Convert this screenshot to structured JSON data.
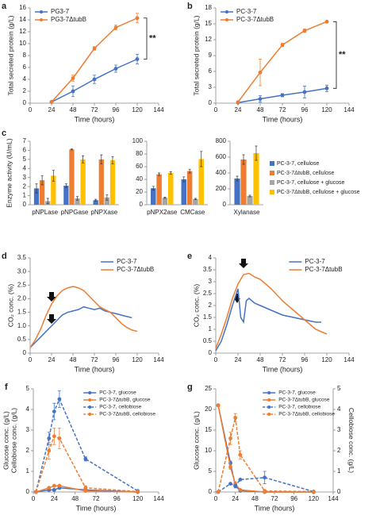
{
  "chart_data": [
    {
      "type": "line",
      "label": "a",
      "x_label": "Time (hours)",
      "y_label": "Total secreted protein (g/L)",
      "xlim": [
        0,
        144
      ],
      "xticks": [
        0,
        24,
        48,
        72,
        96,
        120,
        144
      ],
      "ylim": [
        0,
        16
      ],
      "yticks": [
        0,
        2,
        4,
        6,
        8,
        10,
        12,
        14,
        16
      ],
      "legend": "upper left",
      "markers": true,
      "annotations": [
        "**"
      ],
      "series": [
        {
          "name": "PG3-7",
          "color": "#4472c4",
          "x": [
            24,
            48,
            72,
            96,
            120
          ],
          "values": [
            0.2,
            2.0,
            4.0,
            5.8,
            7.4
          ],
          "errors": [
            0.1,
            0.9,
            0.7,
            0.6,
            0.8
          ]
        },
        {
          "name": "PG3-7ΔtubB",
          "color": "#ed7d31",
          "x": [
            24,
            48,
            72,
            96,
            120
          ],
          "values": [
            0.2,
            4.2,
            9.2,
            12.7,
            14.3
          ],
          "errors": [
            0.1,
            0.5,
            0.3,
            0.4,
            0.8
          ]
        }
      ]
    },
    {
      "type": "line",
      "label": "b",
      "x_label": "Time (hours)",
      "y_label": "Total secreted protein (g/L)",
      "xlim": [
        0,
        144
      ],
      "xticks": [
        0,
        24,
        48,
        72,
        96,
        120,
        144
      ],
      "ylim": [
        0,
        18
      ],
      "yticks": [
        0,
        3,
        6,
        9,
        12,
        15,
        18
      ],
      "legend": "upper left",
      "markers": true,
      "annotations": [
        "**"
      ],
      "series": [
        {
          "name": "PC-3-7",
          "color": "#4472c4",
          "x": [
            24,
            48,
            72,
            96,
            120
          ],
          "values": [
            0.1,
            0.8,
            1.5,
            2.1,
            2.8
          ],
          "errors": [
            0.1,
            0.6,
            0.3,
            1.1,
            0.6
          ]
        },
        {
          "name": "PC-3-7ΔtubB",
          "color": "#ed7d31",
          "x": [
            24,
            48,
            72,
            96,
            120
          ],
          "values": [
            0.2,
            5.8,
            11.0,
            13.7,
            15.4
          ],
          "errors": [
            0.1,
            2.5,
            0.3,
            0.3,
            0.2
          ]
        }
      ]
    },
    {
      "type": "bar",
      "label": "c",
      "y_label": "Enzyme activity (U/mL)",
      "legend": "right",
      "series": [
        {
          "name": "PC-3-7, cellulose",
          "color": "#4472c4"
        },
        {
          "name": "PC-3-7ΔtubB, cellulose",
          "color": "#ed7d31"
        },
        {
          "name": "PC-3-7, cellulose + glucose",
          "color": "#a5a5a5"
        },
        {
          "name": "PC-3-7ΔtubB, cellulose + glucose",
          "color": "#ffc000"
        }
      ],
      "panels": [
        {
          "categories": [
            "pNPLase",
            "pNPGase",
            "pNPXase"
          ],
          "ylim": [
            0,
            7
          ],
          "yticks": [
            0,
            1,
            2,
            3,
            4,
            5,
            6,
            7
          ],
          "series": [
            {
              "values": [
                1.8,
                2.1,
                0.5
              ],
              "errors": [
                0.5,
                0.2,
                0.1
              ]
            },
            {
              "values": [
                2.7,
                6.1,
                5.0
              ],
              "errors": [
                0.5,
                0.05,
                0.5
              ]
            },
            {
              "values": [
                0.4,
                0.7,
                0.8
              ],
              "errors": [
                0.3,
                0.2,
                0.3
              ]
            },
            {
              "values": [
                3.2,
                5.0,
                4.9
              ],
              "errors": [
                0.6,
                0.4,
                0.4
              ]
            }
          ]
        },
        {
          "categories": [
            "pNPX2ase",
            "CMCase"
          ],
          "ylim": [
            0,
            100
          ],
          "yticks": [
            0,
            20,
            40,
            60,
            80,
            100
          ],
          "series": [
            {
              "values": [
                26,
                40
              ],
              "errors": [
                3,
                4
              ]
            },
            {
              "values": [
                48,
                53
              ],
              "errors": [
                2,
                3
              ]
            },
            {
              "values": [
                11,
                9
              ],
              "errors": [
                1,
                1
              ]
            },
            {
              "values": [
                50,
                72
              ],
              "errors": [
                2,
                12
              ]
            }
          ]
        },
        {
          "categories": [
            "Xylanase"
          ],
          "ylim": [
            0,
            800
          ],
          "yticks": [
            0,
            200,
            400,
            600,
            800
          ],
          "series": [
            {
              "values": [
                330
              ],
              "errors": [
                30
              ]
            },
            {
              "values": [
                570
              ],
              "errors": [
                60
              ]
            },
            {
              "values": [
                110
              ],
              "errors": [
                10
              ]
            },
            {
              "values": [
                650
              ],
              "errors": [
                90
              ]
            }
          ]
        }
      ]
    },
    {
      "type": "line",
      "label": "d",
      "x_label": "Time (hours)",
      "y_label": "CO₂ conc. (%)",
      "xlim": [
        0,
        144
      ],
      "xticks": [
        0,
        24,
        48,
        72,
        96,
        120,
        144
      ],
      "ylim": [
        0,
        3.5
      ],
      "yticks": [
        0,
        0.5,
        {
          "value": 1,
          "label": "1.0"
        },
        1.5,
        {
          "value": 2,
          "label": "2.0"
        },
        2.5,
        {
          "value": 3,
          "label": "3.0"
        },
        3.5
      ],
      "legend": "upper right",
      "markers": false,
      "series": [
        {
          "name": "PC-3-7",
          "color": "#4472c4",
          "x": [
            0,
            6,
            12,
            18,
            24,
            30,
            36,
            42,
            48,
            54,
            60,
            66,
            72,
            78,
            84,
            90,
            96,
            102,
            108,
            114
          ],
          "values": [
            0.2,
            0.4,
            0.6,
            0.8,
            1.0,
            1.2,
            1.4,
            1.5,
            1.55,
            1.6,
            1.7,
            1.65,
            1.6,
            1.65,
            1.55,
            1.5,
            1.45,
            1.4,
            1.35,
            1.3
          ]
        },
        {
          "name": "PC-3-7ΔtubB",
          "color": "#ed7d31",
          "x": [
            0,
            6,
            12,
            18,
            24,
            30,
            36,
            42,
            48,
            54,
            60,
            66,
            72,
            78,
            84,
            90,
            96,
            102,
            108,
            114,
            120
          ],
          "values": [
            0.2,
            0.5,
            0.9,
            1.4,
            1.8,
            2.1,
            2.3,
            2.4,
            2.45,
            2.4,
            2.3,
            2.1,
            1.9,
            1.7,
            1.6,
            1.5,
            1.3,
            1.1,
            0.95,
            0.85,
            0.8
          ]
        }
      ]
    },
    {
      "type": "line",
      "label": "e",
      "x_label": "Time (hours)",
      "y_label": "CO₂ conc. (%)",
      "xlim": [
        0,
        144
      ],
      "xticks": [
        0,
        24,
        48,
        72,
        96,
        120,
        144
      ],
      "ylim": [
        0,
        4
      ],
      "yticks": [
        0,
        0.5,
        1,
        1.5,
        2,
        2.5,
        3,
        3.5,
        4
      ],
      "legend": "upper right",
      "markers": false,
      "series": [
        {
          "name": "PC-3-7",
          "color": "#4472c4",
          "x": [
            0,
            6,
            12,
            18,
            24,
            27,
            30,
            33,
            36,
            42,
            48,
            54,
            60,
            72,
            84,
            96,
            108,
            114
          ],
          "values": [
            0.1,
            0.5,
            1.2,
            2.0,
            2.7,
            1.5,
            1.3,
            2.2,
            2.3,
            2.1,
            2.0,
            1.9,
            1.8,
            1.6,
            1.5,
            1.4,
            1.3,
            1.3
          ]
        },
        {
          "name": "PC-3-7ΔtubB",
          "color": "#ed7d31",
          "x": [
            0,
            6,
            12,
            18,
            24,
            30,
            36,
            42,
            48,
            54,
            60,
            72,
            84,
            96,
            108,
            120
          ],
          "values": [
            0.2,
            0.8,
            1.5,
            2.3,
            2.9,
            3.3,
            3.35,
            3.2,
            3.1,
            2.9,
            2.7,
            2.2,
            1.8,
            1.4,
            1.0,
            0.8
          ]
        }
      ]
    },
    {
      "type": "line",
      "label": "f",
      "x_label": "Time (hours)",
      "y_label": [
        "Glucose conc. (g/L)",
        "Cellobiose conc. (g/L)"
      ],
      "xlim": [
        0,
        144
      ],
      "xticks": [
        0,
        24,
        48,
        72,
        96,
        120,
        144
      ],
      "ylim": [
        0,
        5
      ],
      "yticks": [
        0,
        1,
        2,
        3,
        4,
        5
      ],
      "legend": "upper right",
      "markers": true,
      "series": [
        {
          "name": "PC-3-7, glucose",
          "color": "#4472c4",
          "dash": false,
          "x": [
            3,
            18,
            24,
            30,
            60,
            120
          ],
          "values": [
            0,
            0.1,
            0.1,
            0.2,
            0.1,
            0
          ],
          "errors": [
            0,
            0.05,
            0.05,
            0.05,
            0.05,
            0
          ]
        },
        {
          "name": "PC-3-7ΔtubB, glucose",
          "color": "#ed7d31",
          "dash": false,
          "x": [
            3,
            18,
            24,
            30,
            60,
            120
          ],
          "values": [
            0,
            0.2,
            0.3,
            0.3,
            0.05,
            0
          ],
          "errors": [
            0,
            0.05,
            0.05,
            0.05,
            0.05,
            0
          ]
        },
        {
          "name": "PC-3-7, cellobiose",
          "color": "#4472c4",
          "dash": true,
          "x": [
            3,
            18,
            24,
            30,
            60,
            120
          ],
          "values": [
            0,
            2.6,
            3.9,
            4.5,
            1.6,
            0.05
          ],
          "errors": [
            0,
            0.3,
            0.4,
            0.4,
            0.1,
            0
          ]
        },
        {
          "name": "PC-3-7ΔtubB, cellobiose",
          "color": "#ed7d31",
          "dash": true,
          "x": [
            3,
            18,
            24,
            30,
            60,
            120
          ],
          "values": [
            0,
            2.0,
            2.7,
            2.6,
            0.2,
            0.02
          ],
          "errors": [
            0,
            0.4,
            0.4,
            0.5,
            0.1,
            0
          ]
        }
      ]
    },
    {
      "type": "line",
      "label": "g",
      "x_label": "Time (hours)",
      "y_label": "Glucose conc. (g/L)",
      "y2_label": "Cellobiose conc. (g/L)",
      "xlim": [
        0,
        144
      ],
      "xticks": [
        0,
        24,
        48,
        72,
        96,
        120,
        144
      ],
      "ylim": [
        0,
        25
      ],
      "yticks": [
        0,
        5,
        10,
        15,
        20,
        25
      ],
      "y2lim": [
        0,
        5
      ],
      "y2ticks": [
        0,
        1,
        2,
        3,
        4,
        5
      ],
      "legend": "upper right",
      "markers": true,
      "series": [
        {
          "name": "PC-3-7, glucose",
          "color": "#4472c4",
          "dash": false,
          "axis": "y",
          "x": [
            3,
            18,
            24,
            30,
            60,
            120
          ],
          "values": [
            21,
            7,
            1.5,
            0.3,
            0,
            0
          ],
          "errors": [
            0.3,
            0.5,
            0.5,
            0.2,
            0,
            0
          ]
        },
        {
          "name": "PC-3-7ΔtubB, glucose",
          "color": "#ed7d31",
          "dash": false,
          "axis": "y",
          "x": [
            3,
            18,
            24,
            30,
            60,
            120
          ],
          "values": [
            21,
            6,
            2,
            0.5,
            0,
            0
          ],
          "errors": [
            0.3,
            0.5,
            0.5,
            0.2,
            0,
            0
          ]
        },
        {
          "name": "PC-3-7, cellobiose",
          "color": "#4472c4",
          "dash": true,
          "axis": "y2",
          "x": [
            3,
            18,
            24,
            30,
            60,
            120
          ],
          "values": [
            0,
            0.4,
            0.3,
            0.6,
            0.7,
            0.02
          ],
          "errors": [
            0,
            0,
            0,
            0,
            0.3,
            0
          ]
        },
        {
          "name": "PC-3-7ΔtubB, cellobiose",
          "color": "#ed7d31",
          "dash": true,
          "axis": "y2",
          "x": [
            3,
            18,
            24,
            30,
            60,
            120
          ],
          "values": [
            0,
            2.6,
            3.6,
            1.8,
            0.05,
            0.02
          ],
          "errors": [
            0,
            0.3,
            0.2,
            0.2,
            0,
            0
          ]
        }
      ]
    }
  ]
}
